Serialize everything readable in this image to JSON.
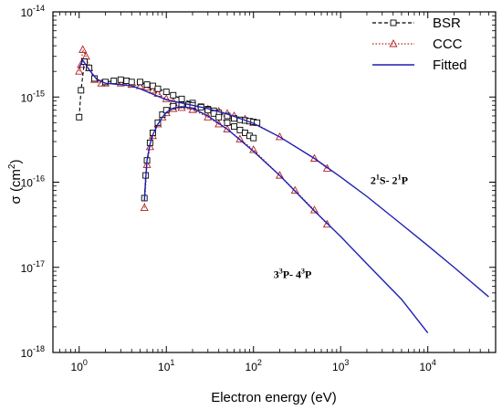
{
  "chart_data": {
    "type": "line",
    "title": "",
    "xlabel": "Electron energy (eV)",
    "ylabel": {
      "base": "σ (cm",
      "sup": "2",
      "tail": ")"
    },
    "x_scale": "log",
    "y_scale": "log",
    "xlim": [
      0.5,
      60000
    ],
    "ylim": [
      1e-18,
      1e-14
    ],
    "grid": false,
    "legend_position": "top-right",
    "x_ticks": [
      {
        "value": 1,
        "base": "10",
        "exp": "0"
      },
      {
        "value": 10,
        "base": "10",
        "exp": "1"
      },
      {
        "value": 100,
        "base": "10",
        "exp": "2"
      },
      {
        "value": 1000,
        "base": "10",
        "exp": "3"
      },
      {
        "value": 10000,
        "base": "10",
        "exp": "4"
      }
    ],
    "y_ticks": [
      {
        "value": 1e-18,
        "base": "10",
        "exp": "-18"
      },
      {
        "value": 1e-17,
        "base": "10",
        "exp": "-17"
      },
      {
        "value": 1e-16,
        "base": "10",
        "exp": "-16"
      },
      {
        "value": 1e-15,
        "base": "10",
        "exp": "-15"
      },
      {
        "value": 1e-14,
        "base": "10",
        "exp": "-14"
      }
    ],
    "legend": [
      {
        "label": "BSR",
        "series": "BSR",
        "color": "#000000",
        "style": "dashed",
        "marker": "square"
      },
      {
        "label": "CCC",
        "series": "CCC",
        "color": "#b22222",
        "style": "dotted",
        "marker": "triangle"
      },
      {
        "label": "Fitted",
        "series": "Fitted",
        "color": "#1f1fb4",
        "style": "solid",
        "marker": "none"
      }
    ],
    "annotations": [
      {
        "id": "annot-2s-2p",
        "parts": [
          [
            "2",
            false
          ],
          [
            "1",
            true
          ],
          [
            "S- 2",
            false
          ],
          [
            "1",
            true
          ],
          [
            "P",
            false
          ]
        ],
        "x": 2200,
        "y": 9.5e-17
      },
      {
        "id": "annot-3p-4p",
        "parts": [
          [
            "3",
            false
          ],
          [
            "3",
            true
          ],
          [
            "P- 4",
            false
          ],
          [
            "3",
            true
          ],
          [
            "P",
            false
          ]
        ],
        "x": 170,
        "y": 7.5e-18
      }
    ],
    "series": [
      {
        "name": "Fitted",
        "transition": "2¹S-2¹P",
        "color": "#1f1fb4",
        "x": [
          1.0,
          1.1,
          1.3,
          1.6,
          2,
          3,
          4,
          5,
          7,
          10,
          15,
          20,
          30,
          50,
          70,
          100,
          200,
          500,
          1000,
          2000,
          5000,
          10000,
          20000,
          50000
        ],
        "y": [
          2.2e-15,
          2.7e-15,
          2.1e-15,
          1.6e-15,
          1.45e-15,
          1.4e-15,
          1.35e-15,
          1.25e-15,
          1.08e-15,
          9.3e-16,
          8.5e-16,
          8e-16,
          7.3e-16,
          6.3e-16,
          5.6e-16,
          4.9e-16,
          3.4e-16,
          1.9e-16,
          1.15e-16,
          6.8e-17,
          3.2e-17,
          1.8e-17,
          1e-17,
          4.5e-18
        ]
      },
      {
        "name": "Fitted",
        "transition": "3³P-4³P",
        "color": "#1f1fb4",
        "x": [
          5.6,
          5.8,
          6,
          6.5,
          7,
          8,
          9,
          10,
          12,
          15,
          20,
          30,
          50,
          100,
          200,
          500,
          1000,
          2000,
          5000,
          10000
        ],
        "y": [
          6e-17,
          1.1e-16,
          1.8e-16,
          2.8e-16,
          3.6e-16,
          4.8e-16,
          5.8e-16,
          6.6e-16,
          7.4e-16,
          7.7e-16,
          7.4e-16,
          6e-16,
          4.2e-16,
          2.3e-16,
          1.2e-16,
          4.6e-17,
          2.3e-17,
          1.1e-17,
          4.2e-18,
          1.7e-18
        ]
      },
      {
        "name": "BSR",
        "transition": "2¹S-2¹P",
        "color": "#000000",
        "x": [
          1.0,
          1.05,
          1.15,
          1.3,
          1.5,
          2,
          2.5,
          3,
          3.5,
          4,
          5,
          6,
          7,
          8,
          10,
          12,
          15,
          20,
          25,
          30,
          35,
          40,
          50,
          60,
          70,
          80,
          90,
          100,
          110
        ],
        "y": [
          5.8e-16,
          1.2e-15,
          2.6e-15,
          2.2e-15,
          1.65e-15,
          1.5e-15,
          1.55e-15,
          1.6e-15,
          1.55e-15,
          1.5e-15,
          1.5e-15,
          1.4e-15,
          1.35e-15,
          1.25e-15,
          1.15e-15,
          1.05e-15,
          9.5e-16,
          8.5e-16,
          7.7e-16,
          7.2e-16,
          6.9e-16,
          6.5e-16,
          6e-16,
          5.6e-16,
          5.4e-16,
          5.3e-16,
          5.2e-16,
          5.1e-16,
          5e-16
        ]
      },
      {
        "name": "BSR",
        "transition": "3³P-4³P",
        "color": "#000000",
        "x": [
          5.6,
          5.8,
          6,
          6.5,
          7,
          8,
          9,
          10,
          12,
          15,
          18,
          20,
          25,
          30,
          35,
          40,
          50,
          60,
          70,
          80,
          90,
          100
        ],
        "y": [
          6.5e-17,
          1.2e-16,
          1.8e-16,
          2.9e-16,
          3.8e-16,
          5e-16,
          6.2e-16,
          7e-16,
          7.8e-16,
          8.1e-16,
          8.1e-16,
          8e-16,
          7.6e-16,
          7e-16,
          6.4e-16,
          5.8e-16,
          5e-16,
          4.5e-16,
          4.1e-16,
          3.8e-16,
          3.5e-16,
          3.3e-16
        ]
      },
      {
        "name": "CCC",
        "transition": "2¹S-2¹P",
        "color": "#b22222",
        "x": [
          1.0,
          1.05,
          1.1,
          1.2,
          1.3,
          1.5,
          1.8,
          2,
          3,
          4,
          5,
          6,
          7,
          8,
          10,
          12,
          15,
          20,
          30,
          40,
          50,
          60,
          80,
          100,
          200,
          500,
          700
        ],
        "y": [
          2e-15,
          2.4e-15,
          3.6e-15,
          3e-15,
          2.2e-15,
          1.6e-15,
          1.45e-15,
          1.45e-15,
          1.45e-15,
          1.4e-15,
          1.35e-15,
          1.3e-15,
          1.2e-15,
          1.1e-15,
          9.5e-16,
          8.8e-16,
          8.3e-16,
          7.8e-16,
          7.2e-16,
          6.8e-16,
          6.4e-16,
          6e-16,
          5.5e-16,
          5e-16,
          3.4e-16,
          1.9e-16,
          1.45e-16
        ]
      },
      {
        "name": "CCC",
        "transition": "3³P-4³P",
        "color": "#b22222",
        "x": [
          5.6,
          6,
          6.5,
          7,
          8,
          9,
          10,
          12,
          15,
          20,
          30,
          40,
          50,
          70,
          100,
          200,
          300,
          500,
          700
        ],
        "y": [
          5e-17,
          1.6e-16,
          2.6e-16,
          3.5e-16,
          4.8e-16,
          5.8e-16,
          6.5e-16,
          7.3e-16,
          7.5e-16,
          7.1e-16,
          5.8e-16,
          4.8e-16,
          4.2e-16,
          3.2e-16,
          2.4e-16,
          1.2e-16,
          8e-17,
          4.7e-17,
          3.2e-17
        ]
      }
    ]
  }
}
